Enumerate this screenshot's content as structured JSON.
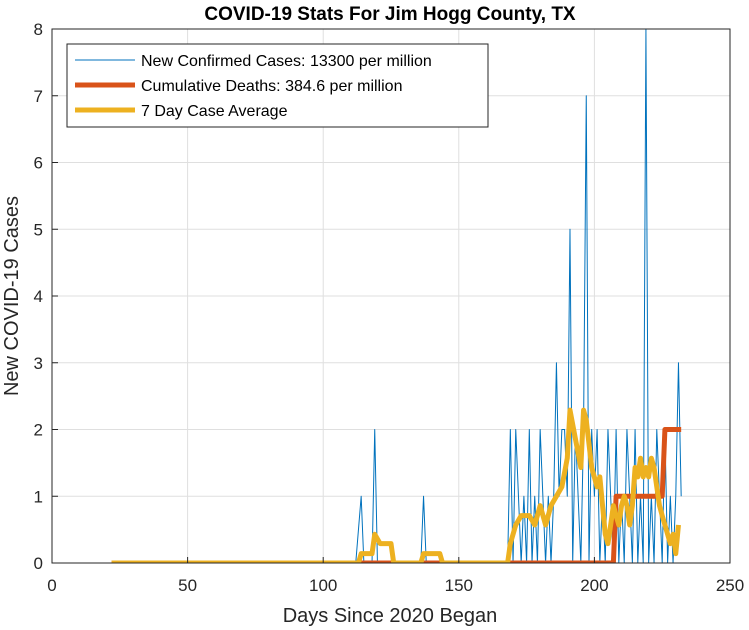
{
  "chart_data": {
    "type": "line",
    "title": "COVID-19 Stats For Jim Hogg County, TX",
    "xlabel": "Days Since 2020 Began",
    "ylabel": "New COVID-19 Cases",
    "xlim": [
      0,
      250
    ],
    "ylim": [
      0,
      8
    ],
    "xticks": [
      0,
      50,
      100,
      150,
      200,
      250
    ],
    "yticks": [
      0,
      1,
      2,
      3,
      4,
      5,
      6,
      7,
      8
    ],
    "grid": true,
    "legend_position": "top-left",
    "series": [
      {
        "name": "New Confirmed Cases: 13300 per million",
        "color": "#0072BD",
        "line_width": "thin",
        "points": [
          [
            22,
            0
          ],
          [
            112,
            0
          ],
          [
            114,
            1
          ],
          [
            115,
            0
          ],
          [
            118,
            0
          ],
          [
            119,
            2
          ],
          [
            120,
            0
          ],
          [
            136,
            0
          ],
          [
            137,
            1
          ],
          [
            138,
            0
          ],
          [
            168,
            0
          ],
          [
            169,
            2
          ],
          [
            170,
            0
          ],
          [
            171,
            2
          ],
          [
            172,
            1
          ],
          [
            173,
            0
          ],
          [
            174,
            1
          ],
          [
            175,
            0
          ],
          [
            176,
            2
          ],
          [
            177,
            0
          ],
          [
            178,
            1
          ],
          [
            179,
            0
          ],
          [
            180,
            2
          ],
          [
            181,
            1
          ],
          [
            182,
            0
          ],
          [
            183,
            1
          ],
          [
            184,
            0
          ],
          [
            185,
            1
          ],
          [
            186,
            3
          ],
          [
            187,
            1
          ],
          [
            188,
            2
          ],
          [
            189,
            2
          ],
          [
            190,
            1
          ],
          [
            191,
            5
          ],
          [
            192,
            0
          ],
          [
            193,
            2
          ],
          [
            194,
            1
          ],
          [
            195,
            0
          ],
          [
            196,
            2
          ],
          [
            197,
            7
          ],
          [
            198,
            0
          ],
          [
            199,
            2
          ],
          [
            200,
            1
          ],
          [
            201,
            2
          ],
          [
            202,
            0
          ],
          [
            203,
            1
          ],
          [
            204,
            0
          ],
          [
            205,
            2
          ],
          [
            206,
            1
          ],
          [
            207,
            0
          ],
          [
            208,
            2
          ],
          [
            209,
            0
          ],
          [
            210,
            1
          ],
          [
            211,
            0
          ],
          [
            212,
            2
          ],
          [
            213,
            1
          ],
          [
            214,
            0
          ],
          [
            215,
            2
          ],
          [
            216,
            0
          ],
          [
            217,
            1
          ],
          [
            218,
            0
          ],
          [
            219,
            8
          ],
          [
            220,
            0
          ],
          [
            221,
            1
          ],
          [
            222,
            0
          ],
          [
            223,
            2
          ],
          [
            224,
            1
          ],
          [
            225,
            0
          ],
          [
            226,
            2
          ],
          [
            227,
            0
          ],
          [
            228,
            1
          ],
          [
            229,
            0
          ],
          [
            230,
            1
          ],
          [
            231,
            3
          ],
          [
            232,
            1
          ]
        ]
      },
      {
        "name": "Cumulative Deaths: 384.6 per million",
        "color": "#D95319",
        "line_width": "thick",
        "points": [
          [
            22,
            0
          ],
          [
            207,
            0
          ],
          [
            208,
            1
          ],
          [
            225,
            1
          ],
          [
            226,
            2
          ],
          [
            232,
            2
          ]
        ]
      },
      {
        "name": "7 Day Case Average",
        "color": "#EDB120",
        "line_width": "thick",
        "points": [
          [
            22,
            0
          ],
          [
            113,
            0
          ],
          [
            114,
            0.14
          ],
          [
            118,
            0.14
          ],
          [
            119,
            0.43
          ],
          [
            121,
            0.29
          ],
          [
            125,
            0.29
          ],
          [
            126,
            0
          ],
          [
            136,
            0
          ],
          [
            137,
            0.14
          ],
          [
            143,
            0.14
          ],
          [
            144,
            0
          ],
          [
            168,
            0
          ],
          [
            169,
            0.29
          ],
          [
            171,
            0.57
          ],
          [
            173,
            0.71
          ],
          [
            176,
            0.71
          ],
          [
            178,
            0.57
          ],
          [
            180,
            0.86
          ],
          [
            182,
            0.57
          ],
          [
            184,
            0.86
          ],
          [
            186,
            1.0
          ],
          [
            188,
            1.14
          ],
          [
            190,
            1.57
          ],
          [
            191,
            2.29
          ],
          [
            193,
            1.86
          ],
          [
            195,
            1.43
          ],
          [
            196,
            2.29
          ],
          [
            197,
            2.14
          ],
          [
            199,
            1.43
          ],
          [
            201,
            1.14
          ],
          [
            202,
            1.29
          ],
          [
            203,
            0.86
          ],
          [
            204,
            0.43
          ],
          [
            205,
            0.29
          ],
          [
            206,
            0.57
          ],
          [
            207,
            0.86
          ],
          [
            208,
            0.71
          ],
          [
            209,
            0.57
          ],
          [
            210,
            0.86
          ],
          [
            211,
            1.0
          ],
          [
            212,
            0.86
          ],
          [
            213,
            0.57
          ],
          [
            214,
            0.86
          ],
          [
            215,
            1.43
          ],
          [
            216,
            1.29
          ],
          [
            217,
            1.57
          ],
          [
            218,
            1.29
          ],
          [
            219,
            1.43
          ],
          [
            220,
            1.29
          ],
          [
            221,
            1.57
          ],
          [
            222,
            1.43
          ],
          [
            223,
            1.14
          ],
          [
            224,
            0.86
          ],
          [
            225,
            0.71
          ],
          [
            226,
            0.57
          ],
          [
            227,
            0.43
          ],
          [
            228,
            0.29
          ],
          [
            229,
            0.43
          ],
          [
            230,
            0.14
          ],
          [
            231,
            0.57
          ]
        ]
      }
    ]
  }
}
